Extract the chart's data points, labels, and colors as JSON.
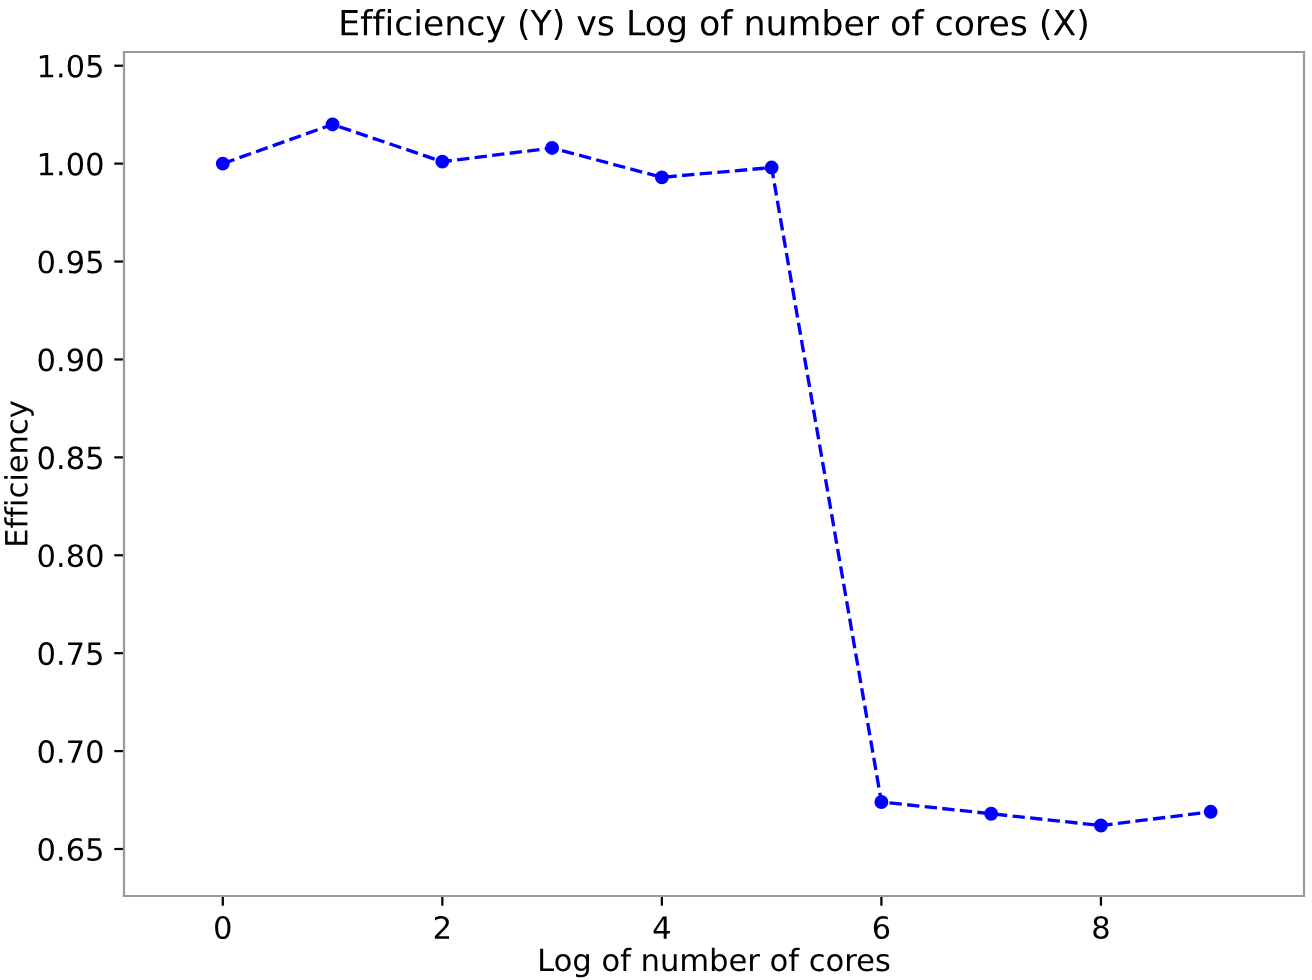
{
  "chart_data": {
    "type": "line",
    "title": "Efficiency (Y) vs Log of number of cores (X)",
    "xlabel": "Log of number of cores",
    "ylabel": "Efficiency",
    "x": [
      0,
      1,
      2,
      3,
      4,
      5,
      6,
      7,
      8,
      9
    ],
    "series": [
      {
        "color": "#0000ff",
        "values": [
          1.0,
          1.02,
          1.001,
          1.008,
          0.993,
          0.998,
          0.674,
          0.668,
          0.662,
          0.669
        ]
      }
    ],
    "marker": "circle",
    "line_style": "dashed",
    "grid": false,
    "legend": false,
    "xlim": [
      -0.9,
      9.85
    ],
    "xticks": [
      0,
      2,
      4,
      6,
      8
    ],
    "ylim": [
      0.626,
      1.057
    ],
    "yticks": [
      {
        "value": 0.65,
        "label": "0.65"
      },
      {
        "value": 0.7,
        "label": "0.70"
      },
      {
        "value": 0.75,
        "label": "0.75"
      },
      {
        "value": 0.8,
        "label": "0.80"
      },
      {
        "value": 0.85,
        "label": "0.85"
      },
      {
        "value": 0.9,
        "label": "0.90"
      },
      {
        "value": 0.95,
        "label": "0.95"
      },
      {
        "value": 1.0,
        "label": "1.00"
      },
      {
        "value": 1.05,
        "label": "1.05"
      }
    ]
  }
}
